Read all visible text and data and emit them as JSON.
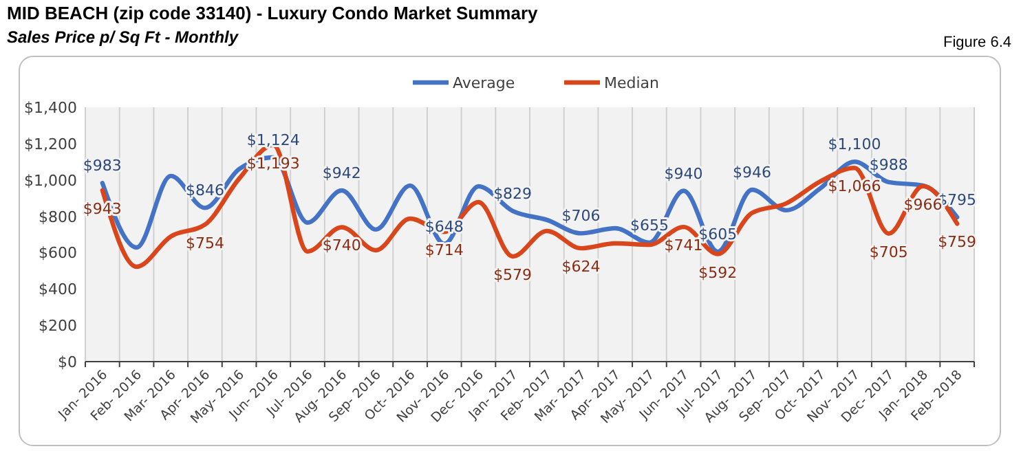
{
  "chart_data": {
    "type": "line",
    "title": "MID BEACH (zip code 33140) - Luxury Condo Market Summary",
    "subtitle": "Sales Price  p/ Sq Ft - Monthly",
    "annotations": [
      "Figure 6.4"
    ],
    "categories": [
      "Jan- 2016",
      "Feb- 2016",
      "Mar- 2016",
      "Apr- 2016",
      "May- 2016",
      "Jun- 2016",
      "Jul- 2016",
      "Aug- 2016",
      "Sep- 2016",
      "Oct- 2016",
      "Nov- 2016",
      "Dec- 2016",
      "Jan- 2017",
      "Feb- 2017",
      "Mar- 2017",
      "Apr- 2017",
      "May- 2017",
      "Jun- 2017",
      "Jul- 2017",
      "Aug- 2017",
      "Sep- 2017",
      "Oct- 2017",
      "Nov- 2017",
      "Dec- 2017",
      "Jan- 2018",
      "Feb- 2018"
    ],
    "series": [
      {
        "name": "Average",
        "color": "#4472c4",
        "values": [
          983,
          628,
          1022,
          846,
          1060,
          1124,
          765,
          942,
          727,
          969,
          648,
          965,
          829,
          780,
          706,
          734,
          655,
          940,
          605,
          946,
          833,
          954,
          1100,
          988,
          969,
          795
        ],
        "value_labels": [
          "$983",
          null,
          null,
          "$846",
          null,
          "$1,124",
          null,
          "$942",
          null,
          null,
          "$648",
          null,
          "$829",
          null,
          "$706",
          null,
          "$655",
          "$940",
          "$605",
          "$946",
          null,
          null,
          "$1,100",
          "$988",
          null,
          "$795"
        ]
      },
      {
        "name": "Median",
        "color": "#d9461b",
        "values": [
          943,
          522,
          689,
          754,
          1007,
          1193,
          606,
          740,
          613,
          787,
          714,
          878,
          579,
          719,
          624,
          651,
          643,
          741,
          592,
          818,
          871,
          992,
          1066,
          705,
          966,
          759
        ],
        "value_labels": [
          "$943",
          null,
          null,
          "$754",
          null,
          "$1,193",
          null,
          "$740",
          null,
          null,
          "$714",
          null,
          "$579",
          null,
          "$624",
          null,
          null,
          "$741",
          "$592",
          null,
          null,
          null,
          "$1,066",
          "$705",
          "$966",
          "$759"
        ]
      }
    ],
    "ylim": [
      0,
      1400
    ],
    "yticks": [
      {
        "value": 0,
        "label": "$0"
      },
      {
        "value": 200,
        "label": "$200"
      },
      {
        "value": 400,
        "label": "$400"
      },
      {
        "value": 600,
        "label": "$600"
      },
      {
        "value": 800,
        "label": "$800"
      },
      {
        "value": 1000,
        "label": "$1,000"
      },
      {
        "value": 1200,
        "label": "$1,200"
      },
      {
        "value": 1400,
        "label": "$1,400"
      }
    ],
    "grid": "x",
    "legend": "top",
    "marker": "none",
    "line_style": "solid"
  }
}
